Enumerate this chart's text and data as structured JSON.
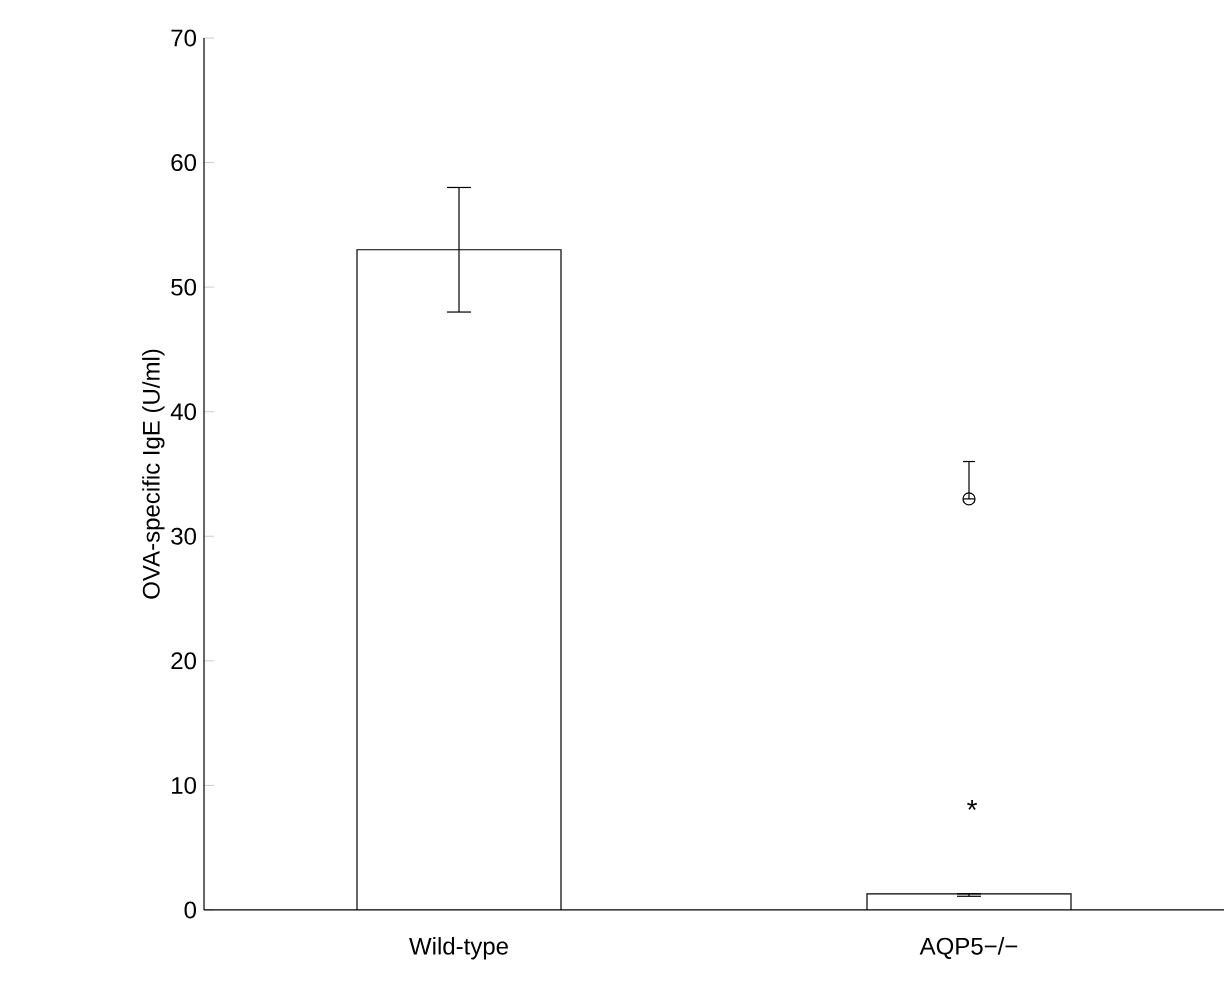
{
  "chart_data": {
    "type": "bar",
    "ylabel": "OVA-specific IgE (U/ml)",
    "categories": [
      "Wild-type",
      "AQP5−/−"
    ],
    "series": [
      {
        "color": "#ffffff",
        "values": [
          53,
          1.3
        ],
        "errors": [
          [
            48,
            58
          ],
          [
            1.1,
            1.3
          ]
        ]
      },
      {
        "type": "scatter",
        "color": "#000000",
        "marker": "circle",
        "x": [
          "AQP5−/−"
        ],
        "values": [
          33
        ],
        "errors": [
          [
            33,
            36
          ]
        ]
      }
    ],
    "ylim": [
      0,
      70
    ],
    "yticks": [
      0,
      10,
      20,
      30,
      40,
      50,
      60,
      70
    ],
    "annotations": [
      "*"
    ],
    "grid": false
  }
}
